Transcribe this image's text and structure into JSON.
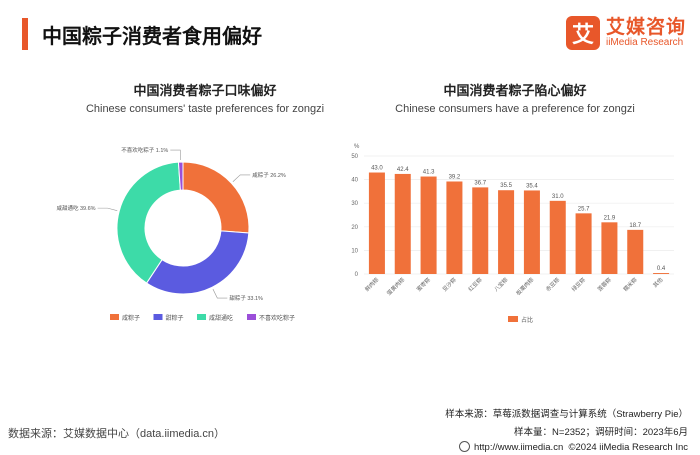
{
  "header": {
    "title": "中国粽子消费者食用偏好",
    "logo_mark": "艾",
    "logo_cn": "艾媒咨询",
    "logo_en": "iiMedia Research",
    "accent_color": "#e8572a"
  },
  "left_chart": {
    "title": "中国消费者粽子口味偏好",
    "subtitle": "Chinese consumers' taste preferences for zongzi"
  },
  "right_chart": {
    "title": "中国消费者粽子陷心偏好",
    "subtitle": "Chinese consumers have a preference for zongzi"
  },
  "chart_data": [
    {
      "type": "pie",
      "title": "中国消费者粽子口味偏好",
      "subtitle": "Chinese consumers' taste preferences for zongzi",
      "hole": "donut",
      "slices": [
        {
          "label": "咸粽子",
          "value": 26.2,
          "value_label": "26.2%",
          "color": "#f0713a"
        },
        {
          "label": "甜粽子",
          "value": 33.1,
          "value_label": "33.1%",
          "color": "#5b5be0"
        },
        {
          "label": "咸甜通吃",
          "value": 39.6,
          "value_label": "39.6%",
          "color": "#3ddba8"
        },
        {
          "label": "不喜欢吃粽子",
          "value": 1.1,
          "value_label": "1.1%",
          "color": "#9b4fd9"
        }
      ],
      "legend": [
        "咸粽子",
        "甜粽子",
        "咸甜通吃",
        "不喜欢吃粽子"
      ],
      "legend_placement": "bottom"
    },
    {
      "type": "bar",
      "title": "中国消费者粽子陷心偏好",
      "subtitle": "Chinese consumers have a preference for zongzi",
      "ylabel": "%",
      "ylim": [
        0,
        50
      ],
      "yticks": [
        0,
        10,
        20,
        30,
        40,
        50
      ],
      "categories": [
        "鲜肉粽",
        "蛋黄肉粽",
        "蜜枣粽",
        "豆沙粽",
        "红豆粽",
        "八宝粽",
        "板栗肉粽",
        "赤豆粽",
        "绿豆粽",
        "莲蓉粽",
        "糯米粽",
        "其他"
      ],
      "series": [
        {
          "name": "占比",
          "values": [
            43.0,
            42.4,
            41.3,
            39.2,
            36.7,
            35.5,
            35.4,
            31.0,
            25.7,
            21.9,
            18.7,
            0.4
          ],
          "value_labels": [
            "43.0",
            "42.4",
            "41.3",
            "39.2",
            "36.7",
            "35.5",
            "35.4",
            "31.0",
            "25.7",
            "21.9",
            "18.7",
            "0.4"
          ],
          "color": "#f0713a"
        }
      ],
      "grid": true,
      "legend_placement": "bottom"
    }
  ],
  "footer": {
    "source_left": "数据来源：艾媒数据中心（data.iimedia.cn）",
    "sample_source": "样本来源：草莓派数据调查与计算系统（Strawberry Pie）",
    "sample_size": "样本量：N=2352；调研时间：2023年6月",
    "website": "http://www.iimedia.cn",
    "copyright": "©2024  iiMedia Research  Inc"
  }
}
